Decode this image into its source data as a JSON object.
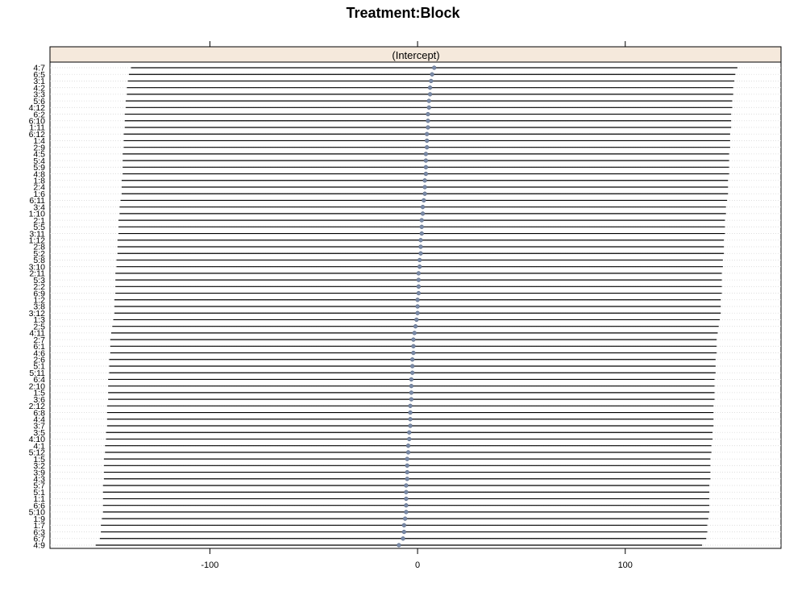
{
  "chart_data": {
    "type": "dotplot",
    "title": "Treatment:Block",
    "panel_strip": "(Intercept)",
    "xlim": [
      -177,
      175
    ],
    "x_ticks": [
      -100,
      0,
      100
    ],
    "x_tick_labels": [
      "-100",
      "0",
      "100"
    ],
    "grid": "horizontal dotted lines per row",
    "point_color": "#7a8aa6",
    "strip_color": "#f5e9dc",
    "rows": [
      {
        "label": "4:7",
        "estimate": 8.0,
        "lower": -138.0,
        "upper": 154.0
      },
      {
        "label": "6:5",
        "estimate": 7.0,
        "lower": -139.0,
        "upper": 153.0
      },
      {
        "label": "3:1",
        "estimate": 6.5,
        "lower": -139.5,
        "upper": 152.5
      },
      {
        "label": "4:2",
        "estimate": 6.0,
        "lower": -140.0,
        "upper": 152.0
      },
      {
        "label": "3:3",
        "estimate": 6.0,
        "lower": -140.0,
        "upper": 152.0
      },
      {
        "label": "5:6",
        "estimate": 5.5,
        "lower": -140.5,
        "upper": 151.5
      },
      {
        "label": "4:12",
        "estimate": 5.5,
        "lower": -140.5,
        "upper": 151.5
      },
      {
        "label": "6:2",
        "estimate": 5.0,
        "lower": -141.0,
        "upper": 151.0
      },
      {
        "label": "6:10",
        "estimate": 5.0,
        "lower": -141.0,
        "upper": 151.0
      },
      {
        "label": "1:11",
        "estimate": 5.0,
        "lower": -141.0,
        "upper": 151.0
      },
      {
        "label": "6:12",
        "estimate": 4.5,
        "lower": -141.5,
        "upper": 150.5
      },
      {
        "label": "1:4",
        "estimate": 4.5,
        "lower": -141.5,
        "upper": 150.5
      },
      {
        "label": "2:9",
        "estimate": 4.5,
        "lower": -141.5,
        "upper": 150.5
      },
      {
        "label": "4:5",
        "estimate": 4.0,
        "lower": -142.0,
        "upper": 150.0
      },
      {
        "label": "5:4",
        "estimate": 4.0,
        "lower": -142.0,
        "upper": 150.0
      },
      {
        "label": "5:9",
        "estimate": 4.0,
        "lower": -142.0,
        "upper": 150.0
      },
      {
        "label": "4:8",
        "estimate": 4.0,
        "lower": -142.0,
        "upper": 150.0
      },
      {
        "label": "1:8",
        "estimate": 3.5,
        "lower": -142.5,
        "upper": 149.5
      },
      {
        "label": "2:4",
        "estimate": 3.5,
        "lower": -142.5,
        "upper": 149.5
      },
      {
        "label": "1:6",
        "estimate": 3.5,
        "lower": -142.5,
        "upper": 149.5
      },
      {
        "label": "6:11",
        "estimate": 3.0,
        "lower": -143.0,
        "upper": 149.0
      },
      {
        "label": "3:4",
        "estimate": 2.5,
        "lower": -143.5,
        "upper": 148.5
      },
      {
        "label": "1:10",
        "estimate": 2.5,
        "lower": -143.5,
        "upper": 148.5
      },
      {
        "label": "2:1",
        "estimate": 2.0,
        "lower": -144.0,
        "upper": 148.0
      },
      {
        "label": "5:5",
        "estimate": 2.0,
        "lower": -144.0,
        "upper": 148.0
      },
      {
        "label": "3:11",
        "estimate": 2.0,
        "lower": -144.0,
        "upper": 148.0
      },
      {
        "label": "1:12",
        "estimate": 1.5,
        "lower": -144.5,
        "upper": 147.5
      },
      {
        "label": "2:8",
        "estimate": 1.5,
        "lower": -144.5,
        "upper": 147.5
      },
      {
        "label": "5:2",
        "estimate": 1.5,
        "lower": -144.5,
        "upper": 147.5
      },
      {
        "label": "5:8",
        "estimate": 1.0,
        "lower": -145.0,
        "upper": 147.0
      },
      {
        "label": "3:10",
        "estimate": 1.0,
        "lower": -145.0,
        "upper": 147.0
      },
      {
        "label": "2:11",
        "estimate": 0.5,
        "lower": -145.5,
        "upper": 146.5
      },
      {
        "label": "5:3",
        "estimate": 0.5,
        "lower": -145.5,
        "upper": 146.5
      },
      {
        "label": "2:2",
        "estimate": 0.5,
        "lower": -145.5,
        "upper": 146.5
      },
      {
        "label": "6:9",
        "estimate": 0.5,
        "lower": -145.5,
        "upper": 146.5
      },
      {
        "label": "1:2",
        "estimate": 0.0,
        "lower": -146.0,
        "upper": 146.0
      },
      {
        "label": "3:8",
        "estimate": 0.0,
        "lower": -146.0,
        "upper": 146.0
      },
      {
        "label": "3:12",
        "estimate": 0.0,
        "lower": -146.0,
        "upper": 146.0
      },
      {
        "label": "1:3",
        "estimate": -0.5,
        "lower": -146.5,
        "upper": 145.5
      },
      {
        "label": "2:5",
        "estimate": -1.0,
        "lower": -147.0,
        "upper": 145.0
      },
      {
        "label": "4:11",
        "estimate": -1.5,
        "lower": -147.5,
        "upper": 144.5
      },
      {
        "label": "2:7",
        "estimate": -2.0,
        "lower": -148.0,
        "upper": 144.0
      },
      {
        "label": "6:1",
        "estimate": -2.0,
        "lower": -148.0,
        "upper": 144.0
      },
      {
        "label": "4:6",
        "estimate": -2.0,
        "lower": -148.0,
        "upper": 144.0
      },
      {
        "label": "2:6",
        "estimate": -2.5,
        "lower": -148.5,
        "upper": 143.5
      },
      {
        "label": "5:1",
        "estimate": -2.5,
        "lower": -148.5,
        "upper": 143.5
      },
      {
        "label": "5:11",
        "estimate": -2.5,
        "lower": -148.5,
        "upper": 143.5
      },
      {
        "label": "6:4",
        "estimate": -3.0,
        "lower": -149.0,
        "upper": 143.0
      },
      {
        "label": "2:10",
        "estimate": -3.0,
        "lower": -149.0,
        "upper": 143.0
      },
      {
        "label": "1:5",
        "estimate": -3.0,
        "lower": -149.0,
        "upper": 143.0
      },
      {
        "label": "3:6",
        "estimate": -3.0,
        "lower": -149.0,
        "upper": 143.0
      },
      {
        "label": "2:12",
        "estimate": -3.5,
        "lower": -149.5,
        "upper": 142.5
      },
      {
        "label": "6:8",
        "estimate": -3.5,
        "lower": -149.5,
        "upper": 142.5
      },
      {
        "label": "4:4",
        "estimate": -3.5,
        "lower": -149.5,
        "upper": 142.5
      },
      {
        "label": "3:7",
        "estimate": -3.5,
        "lower": -149.5,
        "upper": 142.5
      },
      {
        "label": "3:5",
        "estimate": -4.0,
        "lower": -150.0,
        "upper": 142.0
      },
      {
        "label": "4:10",
        "estimate": -4.0,
        "lower": -150.0,
        "upper": 142.0
      },
      {
        "label": "4:1",
        "estimate": -4.5,
        "lower": -150.5,
        "upper": 141.5
      },
      {
        "label": "5:12",
        "estimate": -4.5,
        "lower": -150.5,
        "upper": 141.5
      },
      {
        "label": "1:5",
        "estimate": -5.0,
        "lower": -151.0,
        "upper": 141.0
      },
      {
        "label": "3:2",
        "estimate": -5.0,
        "lower": -151.0,
        "upper": 141.0
      },
      {
        "label": "3:9",
        "estimate": -5.0,
        "lower": -151.0,
        "upper": 141.0
      },
      {
        "label": "4:3",
        "estimate": -5.0,
        "lower": -151.0,
        "upper": 141.0
      },
      {
        "label": "5:7",
        "estimate": -5.5,
        "lower": -151.5,
        "upper": 140.5
      },
      {
        "label": "5:1",
        "estimate": -5.5,
        "lower": -151.5,
        "upper": 140.5
      },
      {
        "label": "1:1",
        "estimate": -5.5,
        "lower": -151.5,
        "upper": 140.5
      },
      {
        "label": "6:6",
        "estimate": -5.5,
        "lower": -151.5,
        "upper": 140.5
      },
      {
        "label": "5:10",
        "estimate": -5.5,
        "lower": -151.5,
        "upper": 140.5
      },
      {
        "label": "1:9",
        "estimate": -6.0,
        "lower": -152.0,
        "upper": 140.0
      },
      {
        "label": "1:7",
        "estimate": -6.5,
        "lower": -152.5,
        "upper": 139.5
      },
      {
        "label": "6:3",
        "estimate": -6.5,
        "lower": -152.5,
        "upper": 139.5
      },
      {
        "label": "6:7",
        "estimate": -7.0,
        "lower": -153.0,
        "upper": 139.0
      },
      {
        "label": "4:9",
        "estimate": -9.0,
        "lower": -155.0,
        "upper": 137.0
      }
    ]
  }
}
